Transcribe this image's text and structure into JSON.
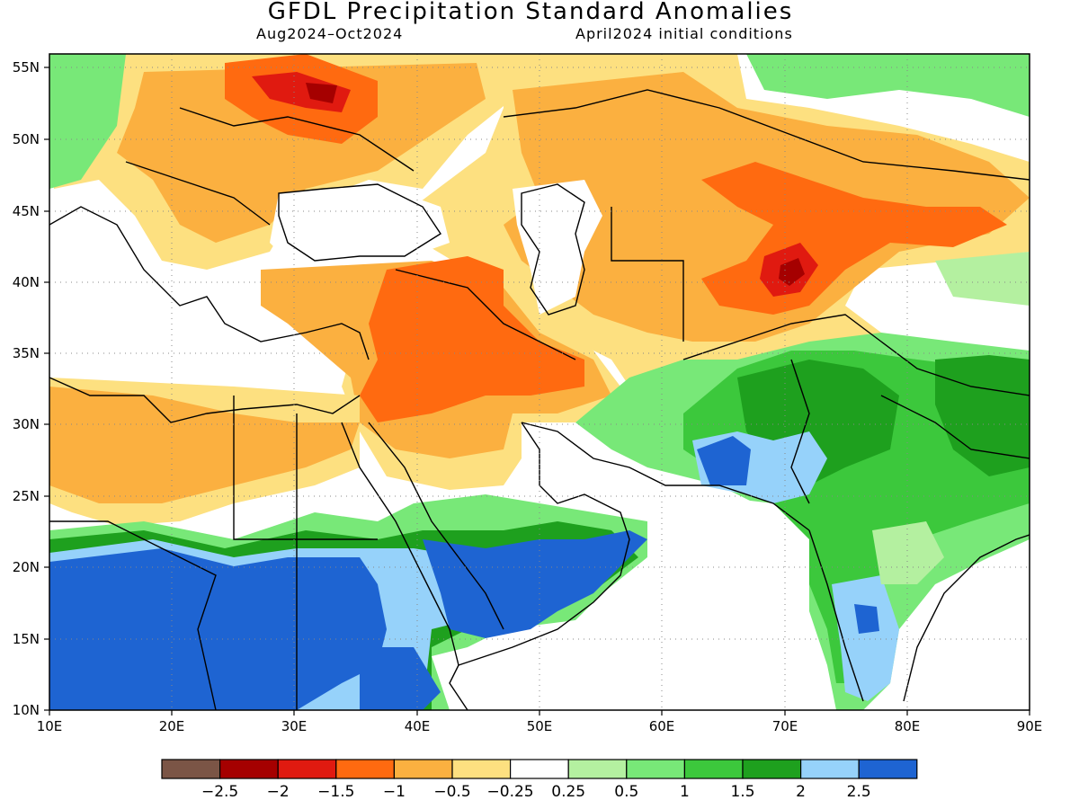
{
  "title": "GFDL Precipitation Standard Anomalies",
  "subtitle_left": "Aug2024–Oct2024",
  "subtitle_right": "April2024 initial conditions",
  "map": {
    "lon_range": [
      10,
      90
    ],
    "lat_range": [
      10,
      56
    ],
    "x_ticks": [
      "10E",
      "20E",
      "30E",
      "40E",
      "50E",
      "60E",
      "70E",
      "80E",
      "90E"
    ],
    "y_ticks": [
      "55N",
      "50N",
      "45N",
      "40N",
      "35N",
      "30N",
      "25N",
      "20N",
      "15N",
      "10N"
    ],
    "grid": "dotted"
  },
  "colorbar": {
    "colors": [
      "#7b5546",
      "#a50000",
      "#e01a10",
      "#ff6a10",
      "#fbb040",
      "#fde080",
      "#ffffff",
      "#b4f0a0",
      "#78e878",
      "#3cc83c",
      "#1ea01e",
      "#96d2fa",
      "#1e64d2"
    ],
    "labels": [
      "−2.5",
      "−2",
      "−1.5",
      "−1",
      "−0.5",
      "−0.25",
      "0.25",
      "0.5",
      "1",
      "1.5",
      "2",
      "2.5"
    ]
  },
  "palette": {
    "dry_light": "#fde080",
    "dry_mid": "#fbb040",
    "dry_strong": "#ff6a10",
    "dry_severe": "#e01a10",
    "dry_extreme": "#a50000",
    "wet_light": "#b4f0a0",
    "wet_mid": "#78e878",
    "wet_strong": "#3cc83c",
    "wet_severe": "#1ea01e",
    "wet_blue_light": "#96d2fa",
    "wet_blue": "#1e64d2"
  }
}
